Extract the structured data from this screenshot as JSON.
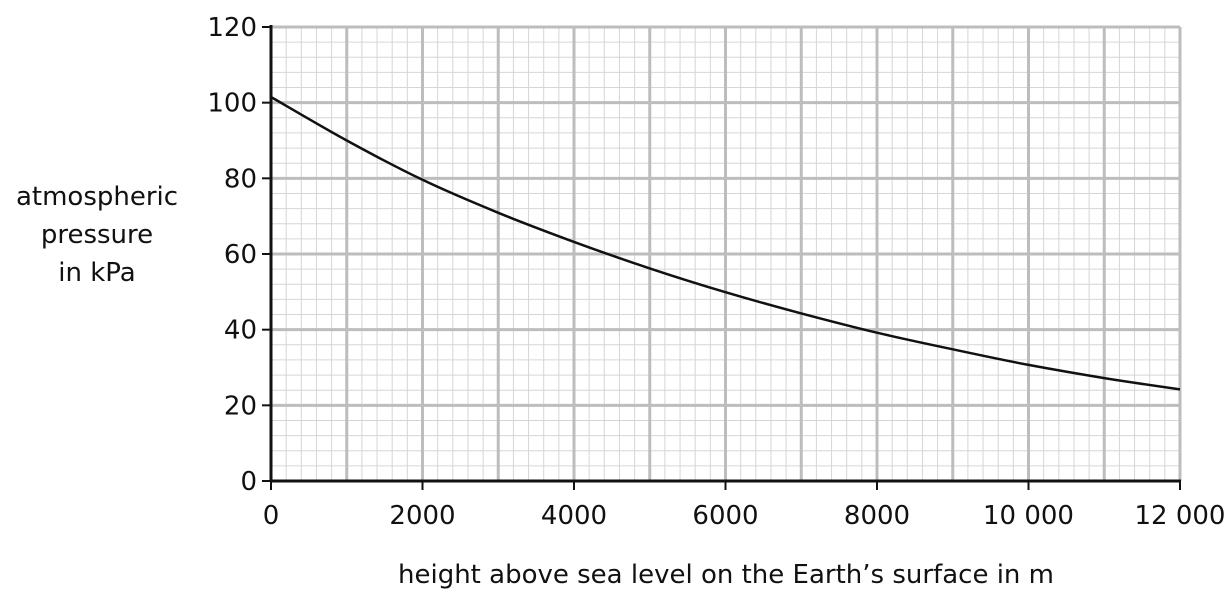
{
  "chart_data": {
    "type": "line",
    "title": "",
    "xlabel": "height above sea level on the Earth’s surface in m",
    "ylabel": [
      "atmospheric",
      "pressure",
      "in kPa"
    ],
    "xlim": [
      0,
      12000
    ],
    "ylim": [
      0,
      120
    ],
    "x_ticks": [
      0,
      2000,
      4000,
      6000,
      8000,
      10000,
      12000
    ],
    "x_tick_labels": [
      "0",
      "2000",
      "4000",
      "6000",
      "8000",
      "10 000",
      "12 000"
    ],
    "y_ticks": [
      0,
      20,
      40,
      60,
      80,
      100,
      120
    ],
    "y_tick_labels": [
      "0",
      "20",
      "40",
      "60",
      "80",
      "100",
      "120"
    ],
    "grid": "on",
    "series": [
      {
        "color": "#111111",
        "x": [
          0,
          1000,
          2000,
          3000,
          4000,
          5000,
          6000,
          7000,
          8000,
          9000,
          10000,
          11000,
          12000
        ],
        "y": [
          101.5,
          90,
          79.6,
          70.9,
          63.2,
          56.2,
          49.9,
          44.3,
          39.2,
          34.8,
          30.7,
          27.2,
          24.2
        ]
      }
    ]
  }
}
